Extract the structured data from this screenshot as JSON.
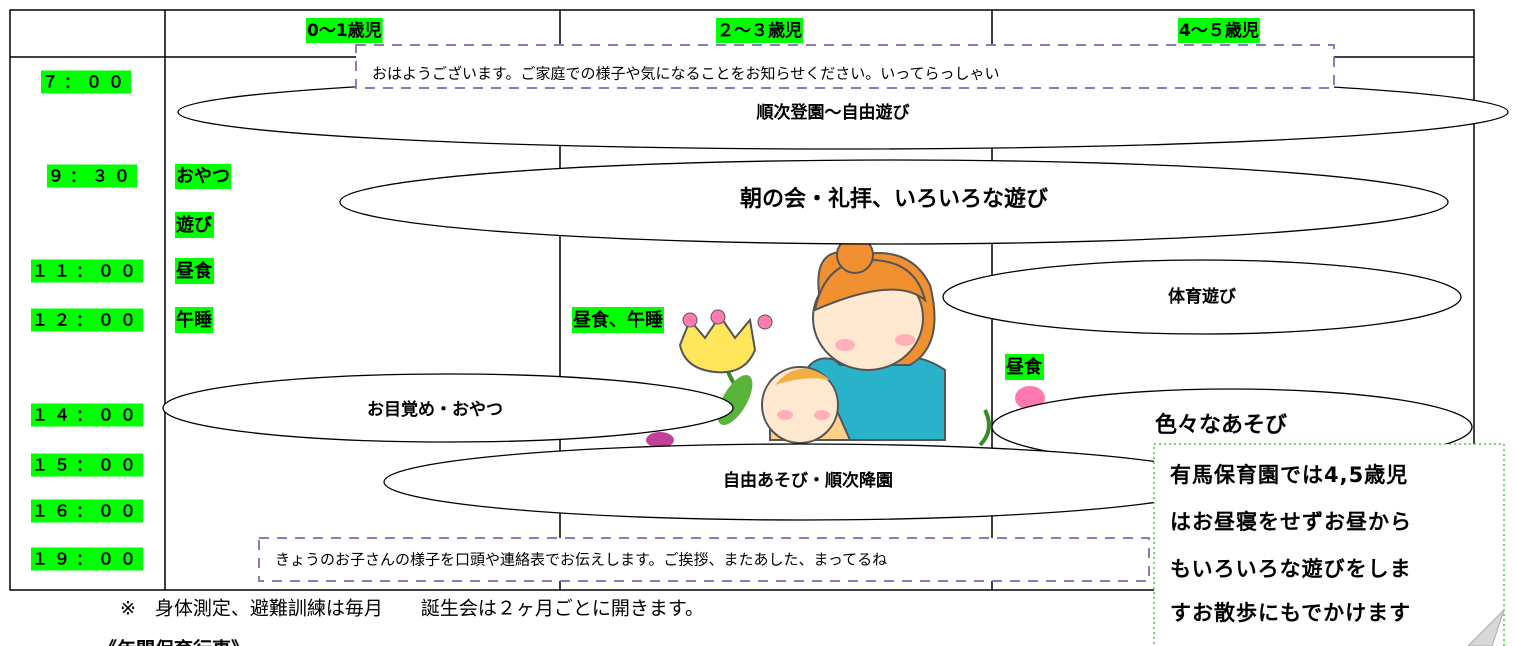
{
  "table": {
    "headers": [
      "0～1歳児",
      "２～３歳児",
      "4～５歳児"
    ],
    "times": [
      "７：００",
      "９：３０",
      "１１：００",
      "１２：００",
      "１４：００",
      "１５：００",
      "１６：００",
      "１９：００"
    ],
    "infant_activities": [
      "おやつ",
      "遊び",
      "昼食",
      "午睡"
    ],
    "toddler_activities": [
      "昼食、午睡"
    ],
    "preschool_activities": [
      "昼食"
    ]
  },
  "ellipses": [
    "順次登園～自由遊び",
    "朝の会・礼拝、いろいろな遊び",
    "体育遊び",
    "お目覚め・おやつ",
    "色々なあそび",
    "自由あそび・順次降園"
  ],
  "notes": [
    "おはようございます。ご家庭での様子や気になることをお知らせください。いってらっしゃい",
    "きょうのお子さんの様子を口頭や連絡表でお伝えします。ご挨拶、またあした、まってるね"
  ],
  "callout": [
    "有馬保育園では4,5歳児",
    "はお昼寝をせずお昼から",
    "もいろいろな遊びをしま",
    "すお散歩にもでかけます"
  ],
  "footer": "※　身体測定、避難訓練は毎月　　誕生会は２ヶ月ごとに開きます。",
  "section_heading": "《年間保育行事》"
}
